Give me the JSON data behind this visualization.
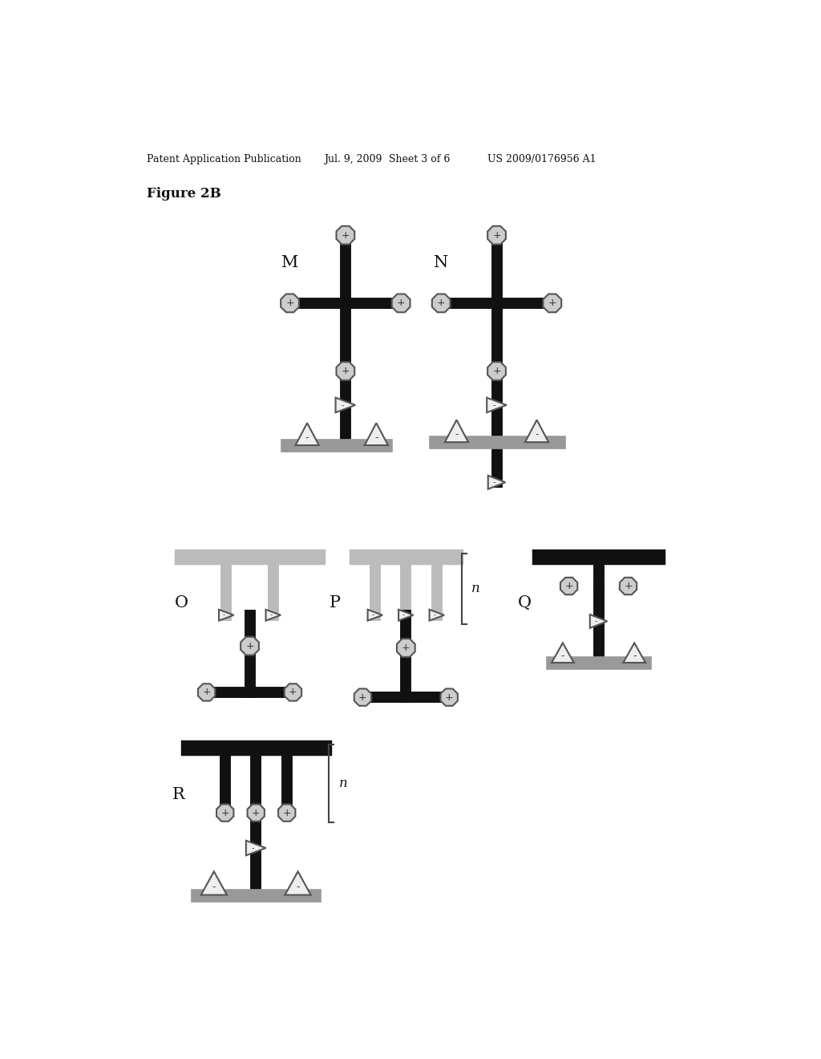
{
  "bg_color": "#ffffff",
  "header_text": "Patent Application Publication",
  "header_date": "Jul. 9, 2009",
  "header_sheet": "Sheet 3 of 6",
  "header_patent": "US 2009/0176956 A1",
  "figure_label": "Figure 2B",
  "line_color_dark": "#111111",
  "bar_color_gray": "#999999",
  "bar_color_gray2": "#bbbbbb",
  "node_color": "#cccccc",
  "node_edge": "#555555",
  "tri_fill": "#eeeeee",
  "tri_edge": "#555555",
  "label_color": "#111111"
}
